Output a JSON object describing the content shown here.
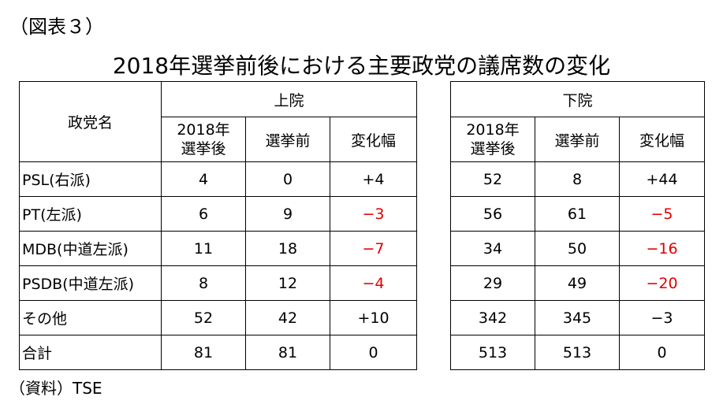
{
  "fig_label": "（図表３）",
  "title": "2018年選挙前後における主要政党の議席数の変化",
  "source": "（資料）TSE",
  "chart_data": {
    "type": "table",
    "title": "2018年選挙前後における主要政党の議席数の変化",
    "party_header": "政党名",
    "houses": [
      {
        "name": "上院",
        "columns": [
          "2018年\n選挙後",
          "選挙前",
          "変化幅"
        ],
        "rows": [
          {
            "after": "4",
            "before": "0",
            "change": "+4"
          },
          {
            "after": "6",
            "before": "9",
            "change": "−3"
          },
          {
            "after": "11",
            "before": "18",
            "change": "−7"
          },
          {
            "after": "8",
            "before": "12",
            "change": "−4"
          },
          {
            "after": "52",
            "before": "42",
            "change": "+10"
          },
          {
            "after": "81",
            "before": "81",
            "change": "0"
          }
        ]
      },
      {
        "name": "下院",
        "columns": [
          "2018年\n選挙後",
          "選挙前",
          "変化幅"
        ],
        "rows": [
          {
            "after": "52",
            "before": "8",
            "change": "+44"
          },
          {
            "after": "56",
            "before": "61",
            "change": "−5"
          },
          {
            "after": "34",
            "before": "50",
            "change": "−16"
          },
          {
            "after": "29",
            "before": "49",
            "change": "−20"
          },
          {
            "after": "342",
            "before": "345",
            "change": "−3"
          },
          {
            "after": "513",
            "before": "513",
            "change": "0"
          }
        ]
      }
    ],
    "parties": [
      "PSL(右派)",
      "PT(左派)",
      "MDB(中道左派)",
      "PSDB(中道左派)",
      "その他",
      "合計"
    ],
    "negative_color": "#e00000"
  }
}
